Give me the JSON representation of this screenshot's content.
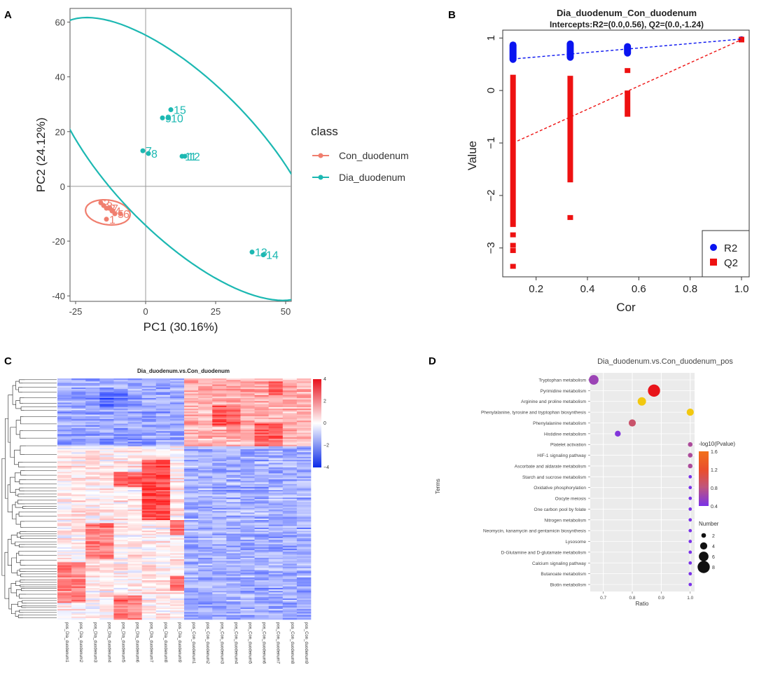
{
  "panel_labels": [
    "A",
    "B",
    "C",
    "D"
  ],
  "chart_data": [
    {
      "panel": "A",
      "type": "scatter",
      "xlabel": "PC1 (30.16%)",
      "ylabel": "PC2 (24.12%)",
      "xlim": [
        -27,
        52
      ],
      "ylim": [
        -42,
        65
      ],
      "xticks": [
        -25,
        0,
        25,
        50
      ],
      "yticks": [
        -40,
        -20,
        0,
        20,
        40,
        60
      ],
      "legend_title": "class",
      "series": [
        {
          "name": "Con_duodenum",
          "color": "#F07E6E",
          "points": [
            {
              "x": -16,
              "y": -6,
              "label": "2"
            },
            {
              "x": -14,
              "y": -8,
              "label": "3"
            },
            {
              "x": -12,
              "y": -9,
              "label": "4"
            },
            {
              "x": -11,
              "y": -10,
              "label": "5"
            },
            {
              "x": -9,
              "y": -10,
              "label": "6"
            },
            {
              "x": -14,
              "y": -12,
              "label": "1"
            },
            {
              "x": -15,
              "y": -7,
              "label": "8"
            },
            {
              "x": -13,
              "y": -8,
              "label": "7"
            }
          ],
          "ellipse": {
            "cx": -13.5,
            "cy": -9.5,
            "rx": 8,
            "ry": 4.5,
            "angle": -8
          }
        },
        {
          "name": "Dia_duodenum",
          "color": "#1CB8B2",
          "points": [
            {
              "x": 9,
              "y": 28,
              "label": "15"
            },
            {
              "x": 6,
              "y": 25,
              "label": "9"
            },
            {
              "x": 8,
              "y": 25,
              "label": "10"
            },
            {
              "x": -1,
              "y": 13,
              "label": "7"
            },
            {
              "x": 1,
              "y": 12,
              "label": "8"
            },
            {
              "x": 13,
              "y": 11,
              "label": "11"
            },
            {
              "x": 14,
              "y": 11,
              "label": "12"
            },
            {
              "x": 38,
              "y": -24,
              "label": "13"
            },
            {
              "x": 42,
              "y": -25,
              "label": "14"
            }
          ],
          "ellipse": {
            "cx": 14,
            "cy": 10,
            "rx": 66,
            "ry": 27,
            "angle": -47
          }
        }
      ]
    },
    {
      "panel": "B",
      "type": "scatter",
      "title": "Dia_duodenum_Con_duodenum",
      "subtitle": "Intercepts:R2=(0.0,0.56), Q2=(0.0,-1.24)",
      "xlabel": "Cor",
      "ylabel": "Value",
      "xlim": [
        0.07,
        1.03
      ],
      "ylim": [
        -3.55,
        1.15
      ],
      "xticks": [
        0.2,
        0.4,
        0.6,
        0.8,
        1.0
      ],
      "xtick_labels": [
        "0.2",
        "0.4",
        "0.6",
        "0.8",
        "1.0"
      ],
      "yticks": [
        1,
        0,
        -1,
        -2,
        -3
      ],
      "ytick_labels": [
        "1",
        "0",
        "−1",
        "−2",
        "−3"
      ],
      "series": [
        {
          "name": "R2",
          "color": "#0A14F0",
          "marker": "circle",
          "groups": [
            {
              "x": 0.11,
              "ymin": 0.58,
              "ymax": 0.88
            },
            {
              "x": 0.333,
              "ymin": 0.62,
              "ymax": 0.9
            },
            {
              "x": 0.556,
              "ymin": 0.7,
              "ymax": 0.85
            },
            {
              "x": 1.0,
              "ymin": 0.98,
              "ymax": 0.98
            }
          ],
          "intercept_line": [
            [
              0.11,
              0.6
            ],
            [
              1.0,
              0.98
            ]
          ]
        },
        {
          "name": "Q2",
          "color": "#EE1111",
          "marker": "square",
          "groups": [
            {
              "x": 0.11,
              "ymin": -2.6,
              "ymax": 0.3,
              "outliers": [
                -2.75,
                -2.95,
                -3.05,
                -3.35
              ]
            },
            {
              "x": 0.333,
              "ymin": -1.75,
              "ymax": 0.28,
              "outliers": [
                -2.42
              ]
            },
            {
              "x": 0.556,
              "ymin": -0.5,
              "ymax": 0.0,
              "outliers": [
                0.38
              ]
            },
            {
              "x": 1.0,
              "ymin": 0.97,
              "ymax": 0.97
            }
          ],
          "intercept_line": [
            [
              0.11,
              -1.0
            ],
            [
              1.0,
              0.97
            ]
          ]
        }
      ]
    },
    {
      "panel": "C",
      "type": "heatmap",
      "title": "Dia_duodenum.vs.Con_duodenum",
      "columns": [
        "pos_Dia_duodenum1",
        "pos_Dia_duodenum2",
        "pos_Dia_duodenum3",
        "pos_Dia_duodenum4",
        "pos_Dia_duodenum5",
        "pos_Dia_duodenum6",
        "pos_Dia_duodenum7",
        "pos_Dia_duodenum8",
        "pos_Dia_duodenum9",
        "pos_Con_duodenum1",
        "pos_Con_duodenum2",
        "pos_Con_duodenum3",
        "pos_Con_duodenum4",
        "pos_Con_duodenum5",
        "pos_Con_duodenum6",
        "pos_Con_duodenum7",
        "pos_Con_duodenum8",
        "pos_Con_duodenum9"
      ],
      "color_scale": {
        "min": -4,
        "max": 4,
        "ticks": [
          4,
          2,
          0,
          -2,
          -4
        ],
        "tick_labels": [
          "4",
          "2",
          "0",
          "−2",
          "−4"
        ]
      },
      "blocks": [
        {
          "cols": [
            9,
            17
          ],
          "rows": [
            0.0,
            0.28
          ],
          "value": 1.4
        },
        {
          "cols": [
            11,
            12
          ],
          "rows": [
            0.11,
            0.2
          ],
          "value": 3.0
        },
        {
          "cols": [
            14,
            15
          ],
          "rows": [
            0.19,
            0.28
          ],
          "value": 3.0
        },
        {
          "cols": [
            15,
            15
          ],
          "rows": [
            0.01,
            0.07
          ],
          "value": 3.0
        },
        {
          "cols": [
            0,
            8
          ],
          "rows": [
            0.0,
            0.28
          ],
          "value": -1.6
        },
        {
          "cols": [
            3,
            4
          ],
          "rows": [
            0.05,
            0.12
          ],
          "value": -2.6
        },
        {
          "cols": [
            9,
            17
          ],
          "rows": [
            0.28,
            1.0
          ],
          "value": -1.5
        },
        {
          "cols": [
            0,
            8
          ],
          "rows": [
            0.28,
            1.0
          ],
          "value": 0.3
        },
        {
          "cols": [
            6,
            7
          ],
          "rows": [
            0.34,
            0.59
          ],
          "value": 3.2
        },
        {
          "cols": [
            4,
            5
          ],
          "rows": [
            0.39,
            0.45
          ],
          "value": 2.6
        },
        {
          "cols": [
            2,
            3
          ],
          "rows": [
            0.6,
            0.75
          ],
          "value": 2.4
        },
        {
          "cols": [
            0,
            1
          ],
          "rows": [
            0.76,
            0.93
          ],
          "value": 2.1
        },
        {
          "cols": [
            8,
            8
          ],
          "rows": [
            0.59,
            0.65
          ],
          "value": 2.6
        },
        {
          "cols": [
            8,
            8
          ],
          "rows": [
            0.82,
            0.88
          ],
          "value": 2.4
        },
        {
          "cols": [
            4,
            5
          ],
          "rows": [
            0.9,
            1.0
          ],
          "value": 2.4
        }
      ]
    },
    {
      "panel": "D",
      "type": "scatter",
      "title": "Dia_duodenum.vs.Con_duodenum_pos",
      "xlabel": "Ratio",
      "ylabel": "Terms",
      "xlim": [
        0.655,
        1.015
      ],
      "xticks": [
        0.7,
        0.8,
        0.9,
        1.0
      ],
      "xtick_labels": [
        "0.7",
        "0.8",
        "0.9",
        "1.0"
      ],
      "terms": [
        {
          "name": "Tryptophan metabolism",
          "ratio": 0.667,
          "pvalue_log10": 0.6,
          "number": 6
        },
        {
          "name": "Pyrimidine metabolism",
          "ratio": 0.875,
          "pvalue_log10": 1.55,
          "number": 8
        },
        {
          "name": "Arginine and proline metabolism",
          "ratio": 0.833,
          "pvalue_log10": 1.3,
          "number": 5
        },
        {
          "name": "Phenylalanine, tyrosine and tryptophan biosynthesis",
          "ratio": 1.0,
          "pvalue_log10": 1.4,
          "number": 4
        },
        {
          "name": "Phenylalanine metabolism",
          "ratio": 0.8,
          "pvalue_log10": 0.9,
          "number": 4
        },
        {
          "name": "Histidine metabolism",
          "ratio": 0.75,
          "pvalue_log10": 0.45,
          "number": 3
        },
        {
          "name": "Platelet activation",
          "ratio": 1.0,
          "pvalue_log10": 0.7,
          "number": 2
        },
        {
          "name": "HIF-1 signaling pathway",
          "ratio": 1.0,
          "pvalue_log10": 0.7,
          "number": 2
        },
        {
          "name": "Ascorbate and aldarate metabolism",
          "ratio": 1.0,
          "pvalue_log10": 0.7,
          "number": 2
        },
        {
          "name": "Starch and sucrose metabolism",
          "ratio": 1.0,
          "pvalue_log10": 0.35,
          "number": 1
        },
        {
          "name": "Oxidative phosphorylation",
          "ratio": 1.0,
          "pvalue_log10": 0.35,
          "number": 1
        },
        {
          "name": "Oocyte meiosis",
          "ratio": 1.0,
          "pvalue_log10": 0.35,
          "number": 1
        },
        {
          "name": "One carbon pool by folate",
          "ratio": 1.0,
          "pvalue_log10": 0.35,
          "number": 1
        },
        {
          "name": "Nitrogen metabolism",
          "ratio": 1.0,
          "pvalue_log10": 0.35,
          "number": 1
        },
        {
          "name": "Neomycin, kanamycin and gentamicin biosynthesis",
          "ratio": 1.0,
          "pvalue_log10": 0.35,
          "number": 1
        },
        {
          "name": "Lysosome",
          "ratio": 1.0,
          "pvalue_log10": 0.35,
          "number": 1
        },
        {
          "name": "D-Glutamine and D-glutamate metabolism",
          "ratio": 1.0,
          "pvalue_log10": 0.35,
          "number": 1
        },
        {
          "name": "Calcium signaling pathway",
          "ratio": 1.0,
          "pvalue_log10": 0.35,
          "number": 1
        },
        {
          "name": "Butanoate metabolism",
          "ratio": 1.0,
          "pvalue_log10": 0.35,
          "number": 1
        },
        {
          "name": "Biotin metabolism",
          "ratio": 1.0,
          "pvalue_log10": 0.35,
          "number": 1
        }
      ],
      "color_legend": {
        "title": "-log10(Pvalue)",
        "min": 0.4,
        "max": 1.6,
        "ticks": [
          1.6,
          1.2,
          0.8,
          0.4
        ],
        "tick_labels": [
          "1.6",
          "1.2",
          "0.8",
          "0.4"
        ]
      },
      "size_legend": {
        "title": "Number",
        "values": [
          2,
          4,
          6,
          8
        ]
      }
    }
  ]
}
